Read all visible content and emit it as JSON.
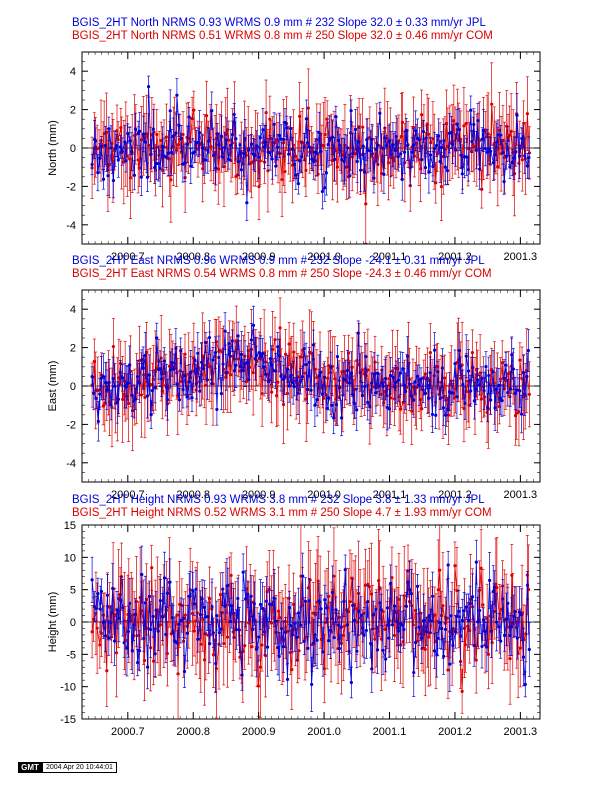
{
  "chart_data": [
    {
      "type": "scatter",
      "component": "North",
      "ylabel": "North (mm)",
      "ylim": [
        -5,
        5
      ],
      "yticks": [
        -4,
        -2,
        0,
        2,
        4
      ],
      "xlim": [
        2000.63,
        2001.33
      ],
      "xticks": [
        "2000.7",
        "2000.8",
        "2000.9",
        "2001.0",
        "2001.1",
        "2001.2",
        "2001.3"
      ],
      "xtick_values": [
        2000.7,
        2000.8,
        2000.9,
        2001.0,
        2001.1,
        2001.2,
        2001.3
      ],
      "series": [
        {
          "name": "JPL",
          "color": "#0000dd",
          "header": "BGIS_2HT North NRMS 0.93 WRMS  0.9 mm # 232 Slope   32.0 ±  0.33 mm/yr JPL",
          "slope": 32.0,
          "count": 232,
          "scatter": 0.9,
          "error": 0.8,
          "seed": 11
        },
        {
          "name": "COM",
          "color": "#dd0000",
          "header": "BGIS_2HT North NRMS 0.51 WRMS  0.8 mm # 250 Slope   32.0 ±  0.46 mm/yr COM",
          "slope": 32.0,
          "count": 250,
          "scatter": 0.8,
          "error": 1.5,
          "seed": 23
        }
      ]
    },
    {
      "type": "scatter",
      "component": "East",
      "ylabel": "East (mm)",
      "ylim": [
        -5,
        5
      ],
      "yticks": [
        -4,
        -2,
        0,
        2,
        4
      ],
      "xlim": [
        2000.63,
        2001.33
      ],
      "xticks": [
        "2000.7",
        "2000.8",
        "2000.9",
        "2001.0",
        "2001.1",
        "2001.2",
        "2001.3"
      ],
      "xtick_values": [
        2000.7,
        2000.8,
        2000.9,
        2001.0,
        2001.1,
        2001.2,
        2001.3
      ],
      "series": [
        {
          "name": "JPL",
          "color": "#0000dd",
          "header": "BGIS_2HT East NRMS 0.96 WRMS  0.9 mm # 232 Slope  -24.1 ±  0.31 mm/yr JPL",
          "slope": -24.1,
          "count": 232,
          "scatter": 0.9,
          "error": 0.8,
          "seed": 37
        },
        {
          "name": "COM",
          "color": "#dd0000",
          "header": "BGIS_2HT East NRMS 0.54 WRMS  0.8 mm # 250 Slope  -24.3 ±  0.46 mm/yr COM",
          "slope": -24.3,
          "count": 250,
          "scatter": 0.8,
          "error": 1.5,
          "seed": 41
        }
      ]
    },
    {
      "type": "scatter",
      "component": "Height",
      "ylabel": "Height (mm)",
      "ylim": [
        -15,
        15
      ],
      "yticks": [
        -15,
        -10,
        -5,
        0,
        5,
        10,
        15
      ],
      "xlim": [
        2000.63,
        2001.33
      ],
      "xticks": [
        "2000.7",
        "2000.8",
        "2000.9",
        "2001.0",
        "2001.1",
        "2001.2",
        "2001.3"
      ],
      "xtick_values": [
        2000.7,
        2000.8,
        2000.9,
        2001.0,
        2001.1,
        2001.2,
        2001.3
      ],
      "series": [
        {
          "name": "JPL",
          "color": "#0000dd",
          "header": "BGIS_2HT Height NRMS 0.93 WRMS  3.8 mm # 232 Slope   3.8 ±  1.33 mm/yr JPL",
          "slope": 3.8,
          "count": 232,
          "scatter": 3.8,
          "error": 3.0,
          "seed": 53
        },
        {
          "name": "COM",
          "color": "#dd0000",
          "header": "BGIS_2HT Height NRMS 0.52 WRMS  3.1 mm # 250 Slope   4.7 ±  1.93 mm/yr COM",
          "slope": 4.7,
          "count": 250,
          "scatter": 3.1,
          "error": 5.5,
          "seed": 67
        }
      ]
    }
  ],
  "footer": {
    "logo": "GMT",
    "timestamp": "2004 Apr 20 10:44:01"
  }
}
